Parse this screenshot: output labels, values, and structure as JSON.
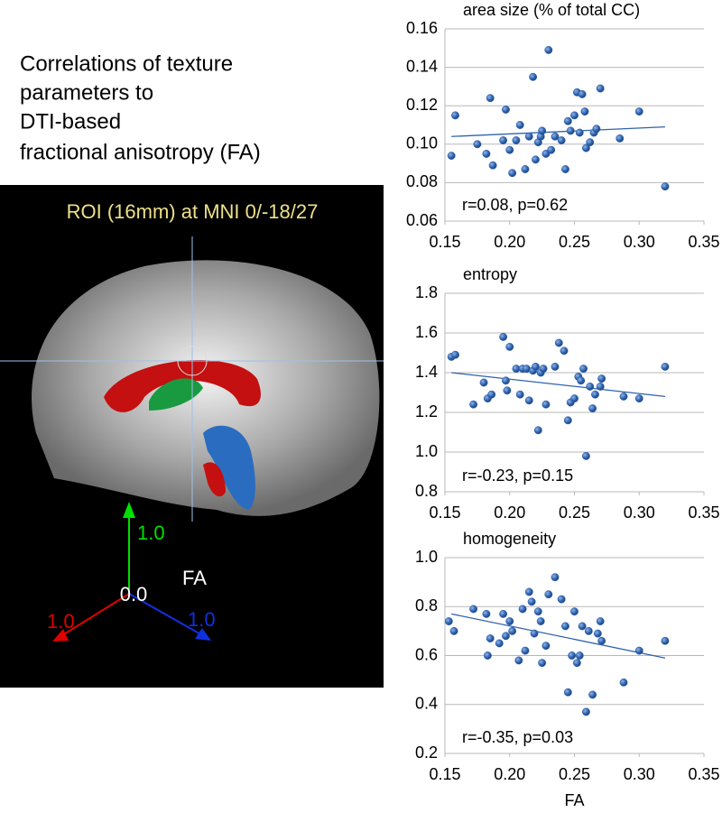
{
  "figure": {
    "title": [
      "Correlations of texture",
      "parameters to",
      "DTI-based",
      "fractional anisotropy (FA)"
    ],
    "image_label": "ROI (16mm) at MNI 0/-18/27",
    "wheel": {
      "green": "1.0",
      "center": "0.0",
      "fa": "FA",
      "red": "1.0",
      "blue": "1.0"
    }
  },
  "chart_data": [
    {
      "type": "scatter",
      "title": "area size (% of total CC)",
      "annotation": "r=0.08, p=0.62",
      "color": "#2f62ad",
      "grid": true,
      "xlim": [
        0.15,
        0.35
      ],
      "xticks": [
        {
          "value": 0.15,
          "label": "0.15"
        },
        {
          "value": 0.2,
          "label": "0.20"
        },
        {
          "value": 0.25,
          "label": "0.25"
        },
        {
          "value": 0.3,
          "label": "0.30"
        },
        {
          "value": 0.35,
          "label": "0.35"
        }
      ],
      "ylim": [
        0.06,
        0.16
      ],
      "yticks": [
        {
          "value": 0.06,
          "label": "0.06"
        },
        {
          "value": 0.08,
          "label": "0.08"
        },
        {
          "value": 0.1,
          "label": "0.10"
        },
        {
          "value": 0.12,
          "label": "0.12"
        },
        {
          "value": 0.14,
          "label": "0.14"
        },
        {
          "value": 0.16,
          "label": "0.16"
        }
      ],
      "x": [
        0.155,
        0.158,
        0.175,
        0.182,
        0.185,
        0.187,
        0.195,
        0.197,
        0.2,
        0.202,
        0.205,
        0.208,
        0.212,
        0.215,
        0.218,
        0.22,
        0.222,
        0.224,
        0.225,
        0.228,
        0.23,
        0.232,
        0.235,
        0.24,
        0.243,
        0.245,
        0.247,
        0.25,
        0.252,
        0.254,
        0.256,
        0.258,
        0.259,
        0.262,
        0.265,
        0.267,
        0.27,
        0.285,
        0.3,
        0.32
      ],
      "values": [
        0.094,
        0.115,
        0.1,
        0.095,
        0.124,
        0.089,
        0.102,
        0.118,
        0.097,
        0.085,
        0.102,
        0.11,
        0.087,
        0.104,
        0.135,
        0.092,
        0.101,
        0.104,
        0.107,
        0.095,
        0.149,
        0.097,
        0.104,
        0.102,
        0.087,
        0.112,
        0.107,
        0.115,
        0.127,
        0.106,
        0.126,
        0.117,
        0.098,
        0.101,
        0.106,
        0.108,
        0.129,
        0.103,
        0.117,
        0.078
      ],
      "trendline": {
        "x": [
          0.155,
          0.32
        ],
        "y": [
          0.104,
          0.109
        ]
      }
    },
    {
      "type": "scatter",
      "title": "entropy",
      "annotation": "r=-0.23, p=0.15",
      "color": "#2f62ad",
      "grid": true,
      "xlim": [
        0.15,
        0.35
      ],
      "xticks": [
        {
          "value": 0.15,
          "label": "0.15"
        },
        {
          "value": 0.2,
          "label": "0.20"
        },
        {
          "value": 0.25,
          "label": "0.25"
        },
        {
          "value": 0.3,
          "label": "0.30"
        },
        {
          "value": 0.35,
          "label": "0.35"
        }
      ],
      "ylim": [
        0.8,
        1.8
      ],
      "yticks": [
        0.8,
        {
          "value": 1,
          "label": "1.0"
        },
        1.2,
        1.4,
        1.6,
        1.8
      ],
      "x": [
        0.155,
        0.158,
        0.172,
        0.18,
        0.183,
        0.186,
        0.195,
        0.197,
        0.198,
        0.2,
        0.205,
        0.208,
        0.21,
        0.213,
        0.215,
        0.218,
        0.22,
        0.222,
        0.224,
        0.226,
        0.228,
        0.235,
        0.238,
        0.242,
        0.245,
        0.247,
        0.25,
        0.253,
        0.255,
        0.257,
        0.259,
        0.262,
        0.264,
        0.266,
        0.27,
        0.271,
        0.288,
        0.3,
        0.32
      ],
      "values": [
        1.48,
        1.49,
        1.24,
        1.35,
        1.27,
        1.29,
        1.58,
        1.36,
        1.31,
        1.53,
        1.42,
        1.29,
        1.42,
        1.42,
        1.26,
        1.41,
        1.43,
        1.11,
        1.4,
        1.42,
        1.24,
        1.43,
        1.55,
        1.51,
        1.16,
        1.25,
        1.27,
        1.38,
        1.36,
        1.42,
        0.98,
        1.33,
        1.22,
        1.29,
        1.33,
        1.37,
        1.28,
        1.27,
        1.43
      ],
      "trendline": {
        "x": [
          0.155,
          0.32
        ],
        "y": [
          1.4,
          1.28
        ]
      }
    },
    {
      "type": "scatter",
      "title": "homogeneity",
      "annotation": "r=-0.35, p=0.03",
      "xlabel": "FA",
      "color": "#2f62ad",
      "grid": true,
      "xlim": [
        0.15,
        0.35
      ],
      "xticks": [
        {
          "value": 0.15,
          "label": "0.15"
        },
        {
          "value": 0.2,
          "label": "0.20"
        },
        {
          "value": 0.25,
          "label": "0.25"
        },
        {
          "value": 0.3,
          "label": "0.30"
        },
        {
          "value": 0.35,
          "label": "0.35"
        }
      ],
      "ylim": [
        0.2,
        1.0
      ],
      "yticks": [
        0.2,
        0.4,
        0.6,
        0.8,
        {
          "value": 1,
          "label": "1.0"
        }
      ],
      "x": [
        0.153,
        0.157,
        0.172,
        0.182,
        0.183,
        0.185,
        0.192,
        0.195,
        0.197,
        0.2,
        0.202,
        0.207,
        0.21,
        0.212,
        0.215,
        0.217,
        0.219,
        0.222,
        0.224,
        0.225,
        0.228,
        0.23,
        0.235,
        0.24,
        0.243,
        0.245,
        0.248,
        0.25,
        0.252,
        0.254,
        0.256,
        0.259,
        0.261,
        0.264,
        0.268,
        0.27,
        0.271,
        0.288,
        0.3,
        0.32
      ],
      "values": [
        0.74,
        0.7,
        0.79,
        0.77,
        0.6,
        0.67,
        0.65,
        0.77,
        0.68,
        0.74,
        0.7,
        0.58,
        0.79,
        0.62,
        0.86,
        0.82,
        0.69,
        0.78,
        0.74,
        0.57,
        0.64,
        0.85,
        0.92,
        0.83,
        0.72,
        0.45,
        0.6,
        0.78,
        0.57,
        0.6,
        0.72,
        0.37,
        0.7,
        0.44,
        0.69,
        0.74,
        0.66,
        0.49,
        0.62,
        0.66
      ],
      "trendline": {
        "x": [
          0.155,
          0.32
        ],
        "y": [
          0.77,
          0.59
        ]
      }
    }
  ]
}
